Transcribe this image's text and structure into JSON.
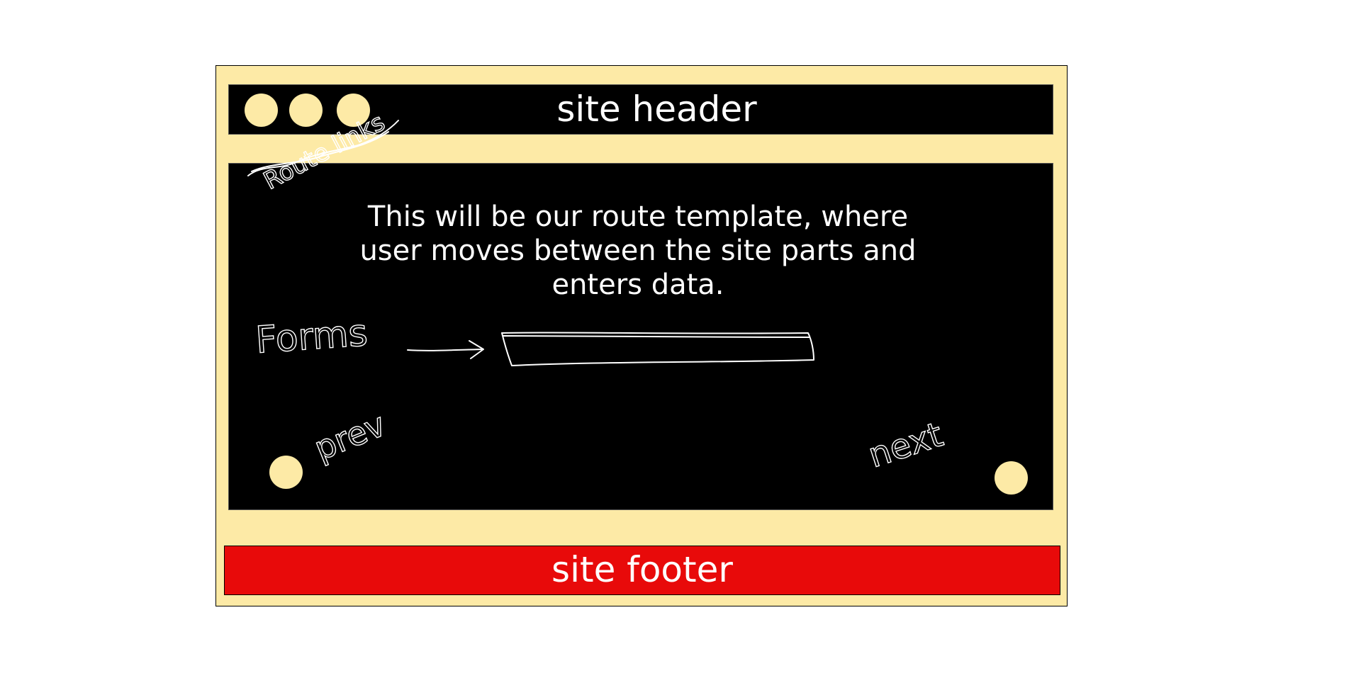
{
  "colors": {
    "frame_bg": "#fdeaa6",
    "panel_bg": "#000000",
    "footer_bg": "#e80a0a",
    "text": "#ffffff"
  },
  "header": {
    "title": "site header",
    "route_link_dots": [
      "route-link",
      "route-link",
      "route-link"
    ]
  },
  "annotations": {
    "route_links": "Route links",
    "forms": "Forms",
    "prev": "prev",
    "next": "next"
  },
  "content": {
    "description": "This will be our route template, where user moves between the site parts and enters data."
  },
  "footer": {
    "title": "site footer"
  }
}
